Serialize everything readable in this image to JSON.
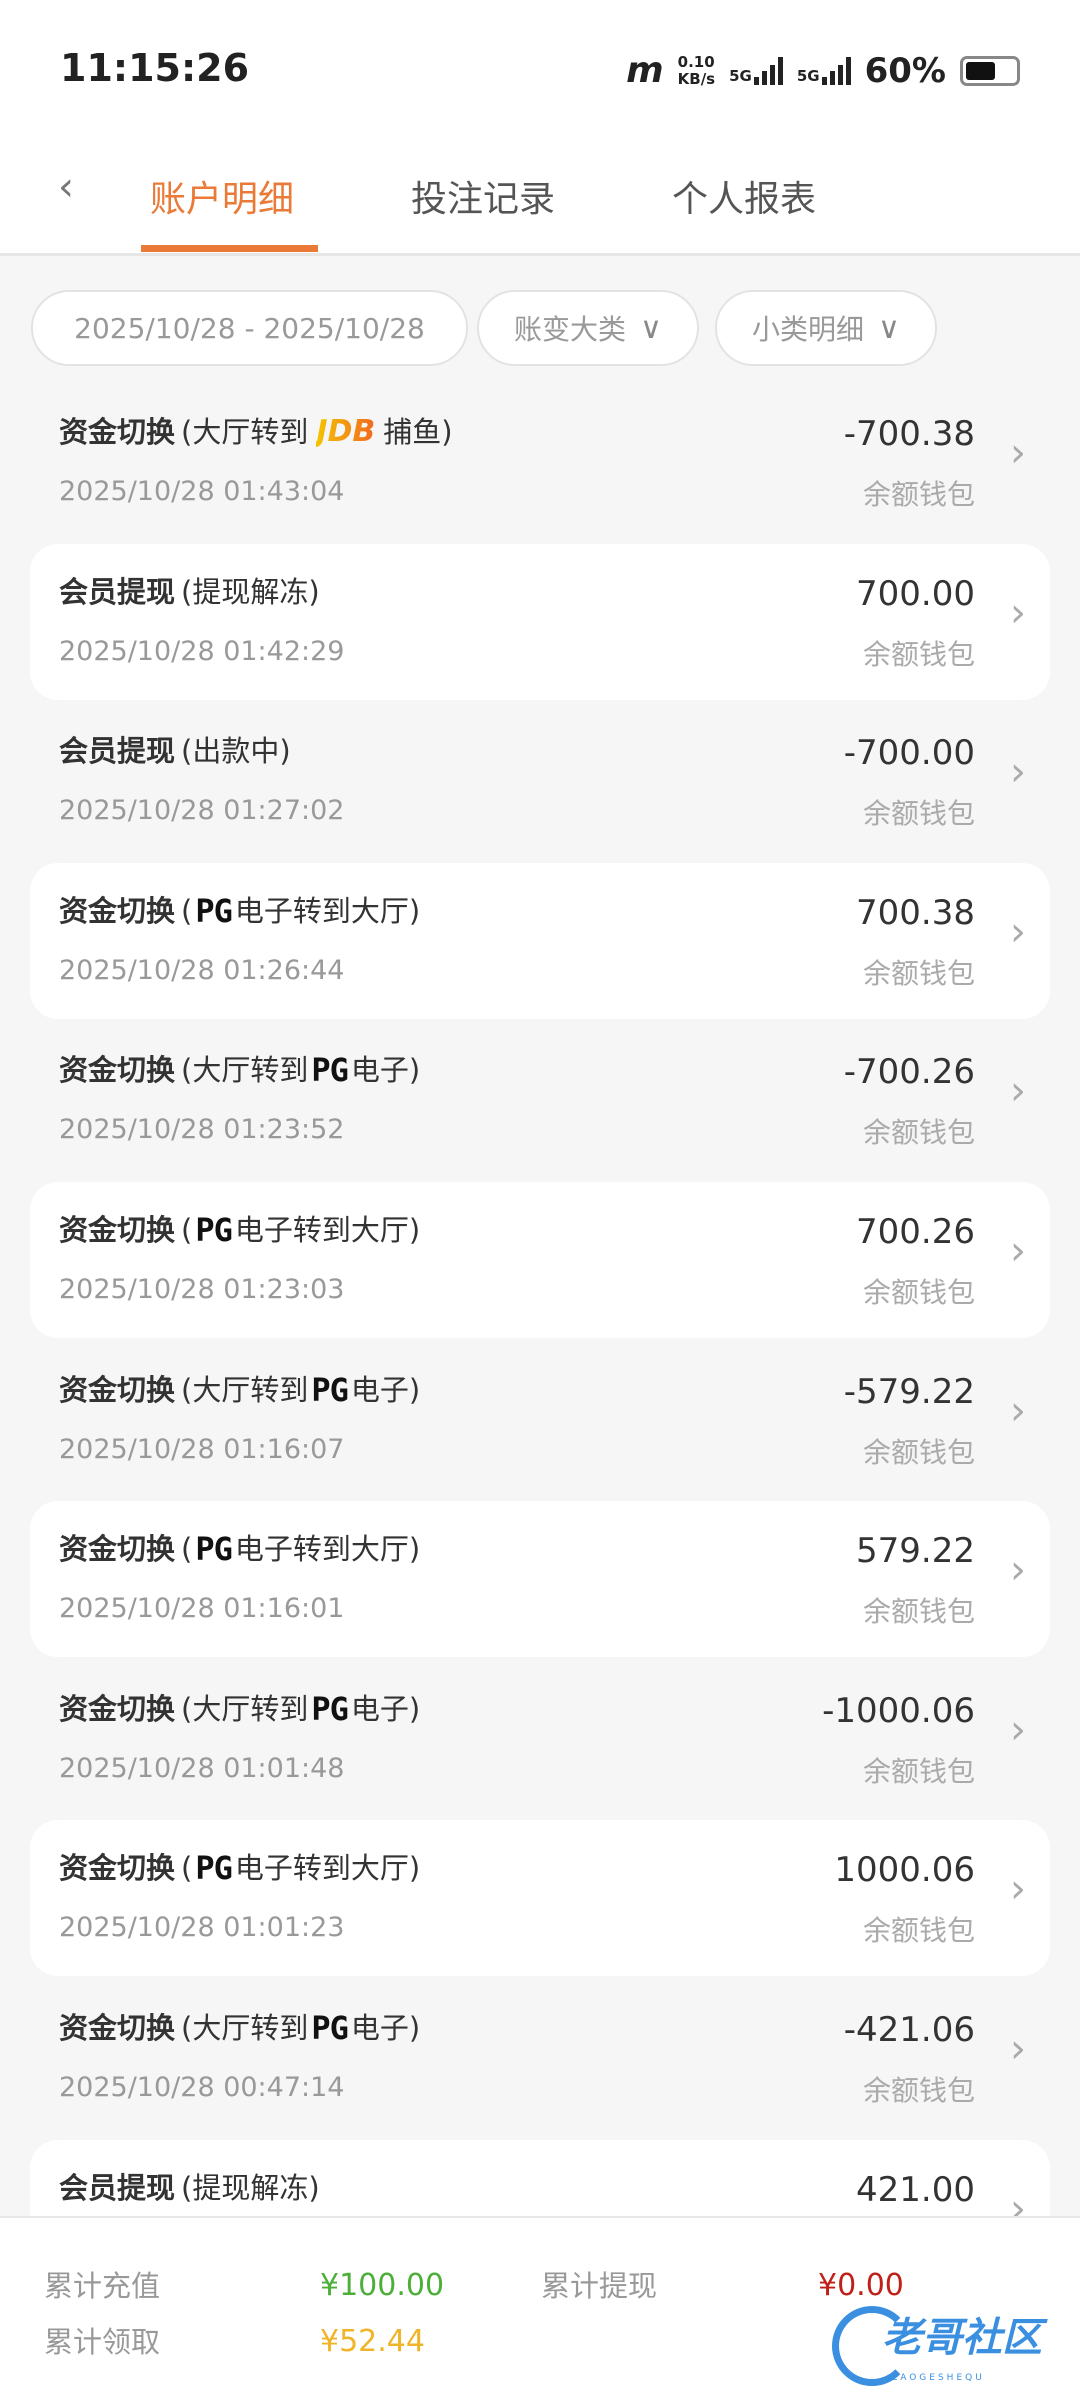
{
  "status_bar": {
    "time": "11:15:26",
    "net_speed": "0.10",
    "net_unit": "KB/s",
    "sim1": "5G",
    "sim2": "5G",
    "battery": "60%",
    "battery_level": 0.6
  },
  "header": {
    "tabs": [
      {
        "label": "账户明细",
        "active": true
      },
      {
        "label": "投注记录",
        "active": false
      },
      {
        "label": "个人报表",
        "active": false
      }
    ]
  },
  "filters": {
    "date_range": "2025/10/28 - 2025/10/28",
    "category": "账变大类",
    "subcategory": "小类明细"
  },
  "records": [
    {
      "type": "资金切换",
      "pre": "(大厅转到",
      "logo": "JDB",
      "post": "捕鱼)",
      "time": "2025/10/28 01:43:04",
      "amount": "-700.38",
      "wallet": "余额钱包"
    },
    {
      "type": "会员提现",
      "pre": "(提现解冻)",
      "logo": "",
      "post": "",
      "time": "2025/10/28 01:42:29",
      "amount": "700.00",
      "wallet": "余额钱包"
    },
    {
      "type": "会员提现",
      "pre": "(出款中)",
      "logo": "",
      "post": "",
      "time": "2025/10/28 01:27:02",
      "amount": "-700.00",
      "wallet": "余额钱包"
    },
    {
      "type": "资金切换",
      "pre": "(",
      "logo": "PG",
      "post": "电子转到大厅)",
      "time": "2025/10/28 01:26:44",
      "amount": "700.38",
      "wallet": "余额钱包"
    },
    {
      "type": "资金切换",
      "pre": "(大厅转到",
      "logo": "PG",
      "post": "电子)",
      "time": "2025/10/28 01:23:52",
      "amount": "-700.26",
      "wallet": "余额钱包"
    },
    {
      "type": "资金切换",
      "pre": "(",
      "logo": "PG",
      "post": "电子转到大厅)",
      "time": "2025/10/28 01:23:03",
      "amount": "700.26",
      "wallet": "余额钱包"
    },
    {
      "type": "资金切换",
      "pre": "(大厅转到",
      "logo": "PG",
      "post": "电子)",
      "time": "2025/10/28 01:16:07",
      "amount": "-579.22",
      "wallet": "余额钱包"
    },
    {
      "type": "资金切换",
      "pre": "(",
      "logo": "PG",
      "post": "电子转到大厅)",
      "time": "2025/10/28 01:16:01",
      "amount": "579.22",
      "wallet": "余额钱包"
    },
    {
      "type": "资金切换",
      "pre": "(大厅转到",
      "logo": "PG",
      "post": "电子)",
      "time": "2025/10/28 01:01:48",
      "amount": "-1000.06",
      "wallet": "余额钱包"
    },
    {
      "type": "资金切换",
      "pre": "(",
      "logo": "PG",
      "post": "电子转到大厅)",
      "time": "2025/10/28 01:01:23",
      "amount": "1000.06",
      "wallet": "余额钱包"
    },
    {
      "type": "资金切换",
      "pre": "(大厅转到",
      "logo": "PG",
      "post": "电子)",
      "time": "2025/10/28 00:47:14",
      "amount": "-421.06",
      "wallet": "余额钱包"
    },
    {
      "type": "会员提现",
      "pre": "(提现解冻)",
      "logo": "",
      "post": "",
      "time": "",
      "amount": "421.00",
      "wallet": ""
    }
  ],
  "footer": {
    "total_deposit_label": "累计充值",
    "total_deposit": "¥100.00",
    "total_deposit_color": "#4caf3a",
    "total_withdraw_label": "累计提现",
    "total_withdraw": "¥0.00",
    "total_withdraw_color": "#c0201a",
    "total_claim_label": "累计领取",
    "total_claim": "¥52.44",
    "total_claim_color": "#f0b429"
  },
  "watermark": {
    "text": "老哥社区",
    "sub": "LAOGESHEQU"
  }
}
